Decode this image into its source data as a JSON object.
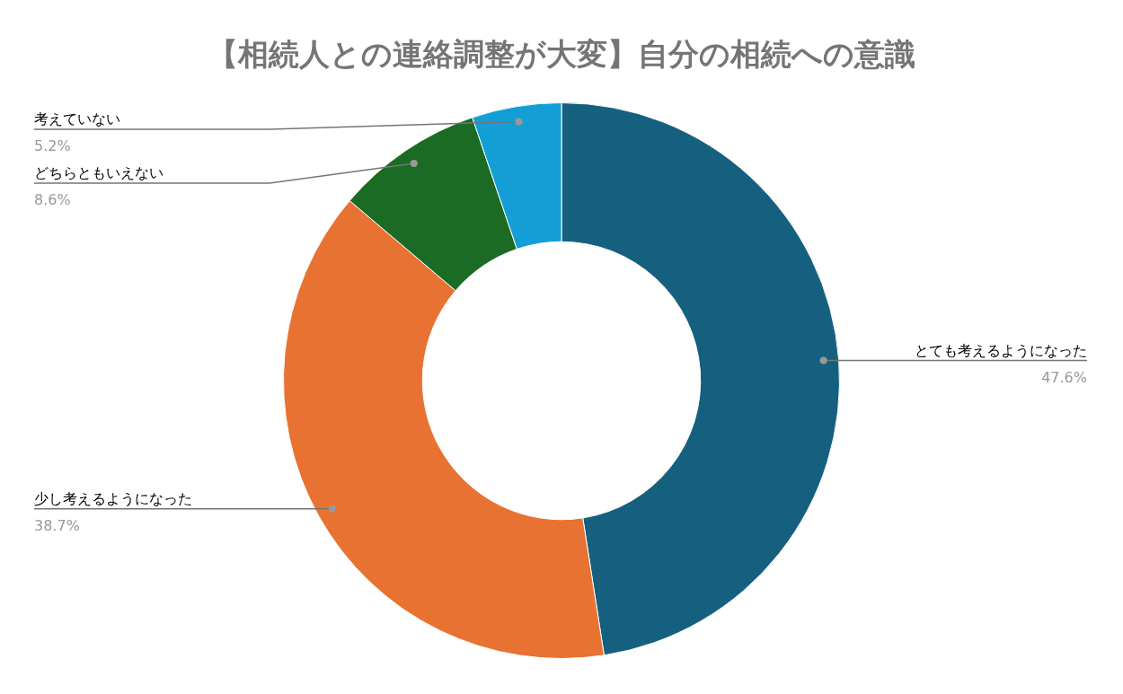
{
  "chart_data": {
    "type": "donut",
    "title": "【相続人との連絡調整が大変】自分の相続への意識",
    "categories": [
      "とても考えるようになった",
      "少し考えるようになった",
      "どちらともいえない",
      "考えていない"
    ],
    "values": [
      47.6,
      38.7,
      8.6,
      5.2
    ],
    "colors": [
      "#16607f",
      "#e87232",
      "#1c6b24",
      "#139fd5"
    ],
    "value_labels": [
      "47.6%",
      "38.7%",
      "8.6%",
      "5.2%"
    ],
    "legend": false
  }
}
